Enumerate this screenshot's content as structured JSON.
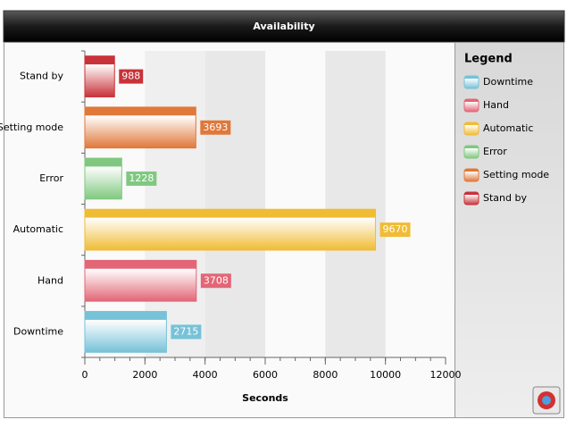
{
  "chart_data": {
    "type": "hbar",
    "title": "Availability",
    "x_label": "Seconds",
    "legend_title": "Legend",
    "categories": [
      "Stand by",
      "Setting mode",
      "Error",
      "Automatic",
      "Hand",
      "Downtime"
    ],
    "values": [
      988,
      3693,
      1228,
      9670,
      3708,
      2715
    ],
    "colors": [
      "#c83238",
      "#e0783a",
      "#80c880",
      "#f0bc34",
      "#e26676",
      "#76c2d8"
    ],
    "xlim": [
      0,
      12000
    ],
    "xticks": [
      0,
      2000,
      4000,
      6000,
      8000,
      10000,
      12000
    ]
  }
}
